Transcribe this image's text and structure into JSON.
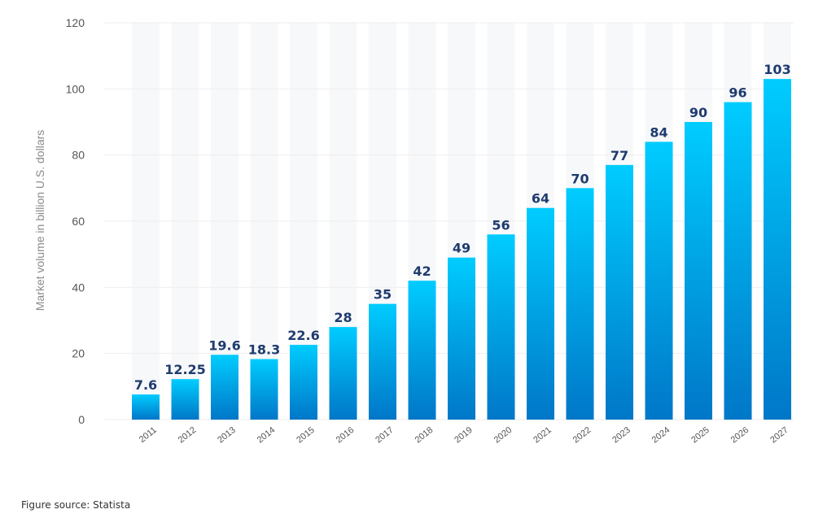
{
  "chart_data": {
    "type": "bar",
    "categories": [
      "2011",
      "2012",
      "2013",
      "2014",
      "2015",
      "2016",
      "2017",
      "2018",
      "2019",
      "2020",
      "2021",
      "2022",
      "2023",
      "2024",
      "2025",
      "2026",
      "2027"
    ],
    "values": [
      7.6,
      12.25,
      19.6,
      18.3,
      22.6,
      28,
      35,
      42,
      49,
      56,
      64,
      70,
      77,
      84,
      90,
      96,
      103
    ],
    "data_labels": [
      "7.6",
      "12.25",
      "19.6",
      "18.3",
      "22.6",
      "28",
      "35",
      "42",
      "49",
      "56",
      "64",
      "70",
      "77",
      "84",
      "90",
      "96",
      "103"
    ],
    "title": "",
    "xlabel": "",
    "ylabel": "Market volume in billion U.S. dollars",
    "ylim": [
      0,
      120
    ],
    "yticks": [
      0,
      20,
      40,
      60,
      80,
      100,
      120
    ],
    "grid": true,
    "colors": {
      "bar_top": "#00ccff",
      "bar_bottom": "#0077c8",
      "label": "#1f3b6e",
      "column_band": "#f7f8fa",
      "tick": "#555555"
    }
  },
  "source": {
    "text": "Figure source: Statista"
  }
}
